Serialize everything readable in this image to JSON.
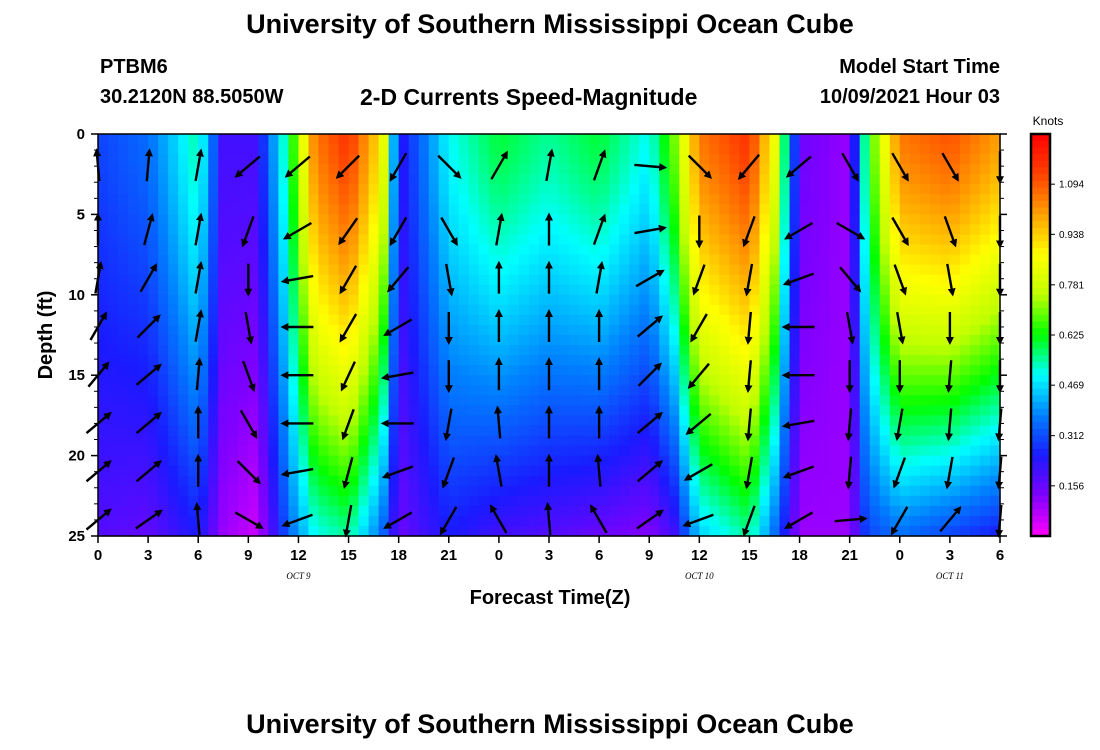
{
  "header": {
    "title": "University of Southern Mississippi Ocean Cube",
    "station_id": "PTBM6",
    "coords": "30.2120N  88.5050W",
    "chart_title": "2-D Currents Speed-Magnitude",
    "model_label": "Model Start Time",
    "model_time": "10/09/2021 Hour 03"
  },
  "footer": {
    "title": "University of Southern Mississippi Ocean Cube"
  },
  "chart_data": {
    "type": "heatmap",
    "title": "2-D Currents Speed-Magnitude",
    "xlabel": "Forecast Time(Z)",
    "ylabel": "Depth (ft)",
    "x_ticks": [
      "0",
      "3",
      "6",
      "9",
      "12",
      "15",
      "18",
      "21",
      "0",
      "3",
      "6",
      "9",
      "12",
      "15",
      "18",
      "21",
      "0",
      "3",
      "6"
    ],
    "x_range_hours": [
      0,
      54
    ],
    "date_labels": [
      {
        "label": "OCT 9",
        "hour": 12
      },
      {
        "label": "OCT 10",
        "hour": 36
      },
      {
        "label": "OCT 11",
        "hour": 51
      }
    ],
    "y_ticks": [
      0,
      5,
      10,
      15,
      20,
      25
    ],
    "y_range_ft": [
      0,
      25
    ],
    "y_inverted": true,
    "colorbar": {
      "unit": "Knots",
      "ticks": [
        "1.094",
        "0.938",
        "0.781",
        "0.625",
        "0.469",
        "0.312",
        "0.156"
      ],
      "tick_values": [
        1.094,
        0.938,
        0.781,
        0.625,
        0.469,
        0.312,
        0.156
      ],
      "range": [
        0,
        1.25
      ],
      "colors": [
        "#ff00ff",
        "#8000ff",
        "#1a1aff",
        "#0080ff",
        "#00ffff",
        "#00ff00",
        "#c0ff00",
        "#ffff00",
        "#ffa000",
        "#ff4000",
        "#ff0000"
      ]
    },
    "speed_profile": [
      {
        "hour": 0,
        "surface": 0.3,
        "bottom": 0.18
      },
      {
        "hour": 3,
        "surface": 0.35,
        "bottom": 0.16
      },
      {
        "hour": 6,
        "surface": 0.55,
        "bottom": 0.25
      },
      {
        "hour": 7.5,
        "surface": 0.2,
        "bottom": 0.1
      },
      {
        "hour": 9.5,
        "surface": 0.2,
        "bottom": 0.05
      },
      {
        "hour": 11.5,
        "surface": 0.6,
        "bottom": 0.35
      },
      {
        "hour": 13,
        "surface": 1.05,
        "bottom": 0.5
      },
      {
        "hour": 15,
        "surface": 1.15,
        "bottom": 0.55
      },
      {
        "hour": 17,
        "surface": 0.9,
        "bottom": 0.35
      },
      {
        "hour": 18,
        "surface": 0.22,
        "bottom": 0.15
      },
      {
        "hour": 21,
        "surface": 0.5,
        "bottom": 0.25
      },
      {
        "hour": 24,
        "surface": 0.6,
        "bottom": 0.2
      },
      {
        "hour": 27,
        "surface": 0.55,
        "bottom": 0.18
      },
      {
        "hour": 30,
        "surface": 0.6,
        "bottom": 0.15
      },
      {
        "hour": 33,
        "surface": 0.5,
        "bottom": 0.12
      },
      {
        "hour": 34.5,
        "surface": 0.7,
        "bottom": 0.2
      },
      {
        "hour": 36,
        "surface": 1.05,
        "bottom": 0.45
      },
      {
        "hour": 39,
        "surface": 1.15,
        "bottom": 0.55
      },
      {
        "hour": 40.5,
        "surface": 0.85,
        "bottom": 0.35
      },
      {
        "hour": 42,
        "surface": 0.15,
        "bottom": 0.1
      },
      {
        "hour": 45,
        "surface": 0.1,
        "bottom": 0.1
      },
      {
        "hour": 46,
        "surface": 0.6,
        "bottom": 0.3
      },
      {
        "hour": 48,
        "surface": 1.05,
        "bottom": 0.35
      },
      {
        "hour": 51,
        "surface": 1.1,
        "bottom": 0.3
      },
      {
        "hour": 54,
        "surface": 1.0,
        "bottom": 0.25
      }
    ],
    "arrow_hours": [
      0,
      3,
      6,
      9,
      12,
      15,
      18,
      21,
      24,
      27,
      30,
      33,
      36,
      39,
      42,
      45,
      48,
      51,
      54
    ],
    "arrow_depths_ft": [
      2,
      6,
      9,
      12,
      15,
      18,
      21,
      24
    ],
    "arrows": [
      {
        "hour": 0,
        "dirs": [
          95,
          90,
          80,
          60,
          50,
          40,
          40,
          40
        ]
      },
      {
        "hour": 3,
        "dirs": [
          85,
          75,
          60,
          45,
          40,
          40,
          40,
          35
        ]
      },
      {
        "hour": 6,
        "dirs": [
          80,
          80,
          80,
          80,
          85,
          90,
          90,
          95
        ]
      },
      {
        "hour": 9,
        "dirs": [
          -140,
          -110,
          -90,
          -80,
          -70,
          -60,
          -45,
          -30
        ]
      },
      {
        "hour": 12,
        "dirs": [
          -140,
          -150,
          -170,
          -180,
          -180,
          -180,
          -170,
          -160
        ]
      },
      {
        "hour": 15,
        "dirs": [
          -135,
          -125,
          -120,
          -120,
          -115,
          -110,
          -105,
          -100
        ]
      },
      {
        "hour": 18,
        "dirs": [
          -120,
          -120,
          -130,
          -150,
          -170,
          -180,
          -160,
          -150
        ]
      },
      {
        "hour": 21,
        "dirs": [
          -45,
          -60,
          -80,
          -90,
          -90,
          -100,
          -110,
          -120
        ]
      },
      {
        "hour": 24,
        "dirs": [
          60,
          80,
          90,
          90,
          90,
          95,
          100,
          120
        ]
      },
      {
        "hour": 27,
        "dirs": [
          80,
          90,
          90,
          90,
          90,
          90,
          90,
          95
        ]
      },
      {
        "hour": 30,
        "dirs": [
          70,
          70,
          80,
          90,
          90,
          90,
          95,
          120
        ]
      },
      {
        "hour": 33,
        "dirs": [
          -5,
          10,
          30,
          40,
          45,
          40,
          40,
          35
        ]
      },
      {
        "hour": 36,
        "dirs": [
          -45,
          -90,
          -110,
          -120,
          -130,
          -140,
          -150,
          -160
        ]
      },
      {
        "hour": 39,
        "dirs": [
          -130,
          -110,
          -100,
          -95,
          -95,
          -95,
          -100,
          -110
        ]
      },
      {
        "hour": 42,
        "dirs": [
          -140,
          -150,
          -160,
          -180,
          -180,
          -170,
          -160,
          -150
        ]
      },
      {
        "hour": 45,
        "dirs": [
          -60,
          -30,
          -50,
          -80,
          -90,
          -95,
          -95,
          5
        ]
      },
      {
        "hour": 48,
        "dirs": [
          -60,
          -60,
          -70,
          -80,
          -90,
          -100,
          -110,
          -120
        ]
      },
      {
        "hour": 51,
        "dirs": [
          -60,
          -70,
          -80,
          -90,
          -95,
          -95,
          -100,
          50
        ]
      },
      {
        "hour": 54,
        "dirs": [
          -90,
          -90,
          -90,
          -90,
          -90,
          -95,
          -95,
          -95
        ]
      }
    ]
  }
}
